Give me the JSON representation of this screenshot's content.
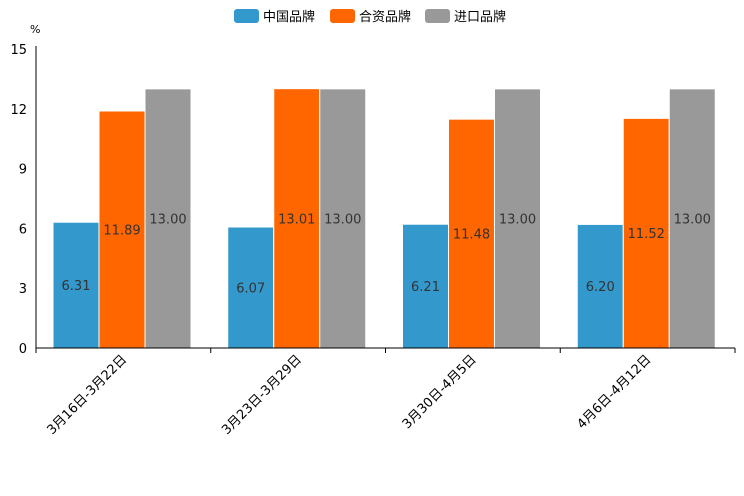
{
  "chart_data": {
    "type": "bar",
    "unit": "%",
    "categories": [
      "3月16日-3月22日",
      "3月23日-3月29日",
      "3月30日-4月5日",
      "4月6日-4月12日"
    ],
    "series": [
      {
        "name": "中国品牌",
        "color": "#3399cc",
        "values": [
          6.31,
          6.07,
          6.21,
          6.2
        ],
        "labels": [
          "6.31",
          "6.07",
          "6.21",
          "6.20"
        ]
      },
      {
        "name": "合资品牌",
        "color": "#ff6600",
        "values": [
          11.89,
          13.01,
          11.48,
          11.52
        ],
        "labels": [
          "11.89",
          "13.01",
          "11.48",
          "11.52"
        ]
      },
      {
        "name": "进口品牌",
        "color": "#999999",
        "values": [
          13.0,
          13.0,
          13.0,
          13.0
        ],
        "labels": [
          "13.00",
          "13.00",
          "13.00",
          "13.00"
        ]
      }
    ],
    "yticks": [
      0,
      3,
      6,
      9,
      12,
      15
    ],
    "ytick_labels": [
      "0",
      "3",
      "6",
      "9",
      "12",
      "15"
    ],
    "ylim": [
      0,
      15
    ],
    "legend_position": "top-center",
    "grid": false
  }
}
